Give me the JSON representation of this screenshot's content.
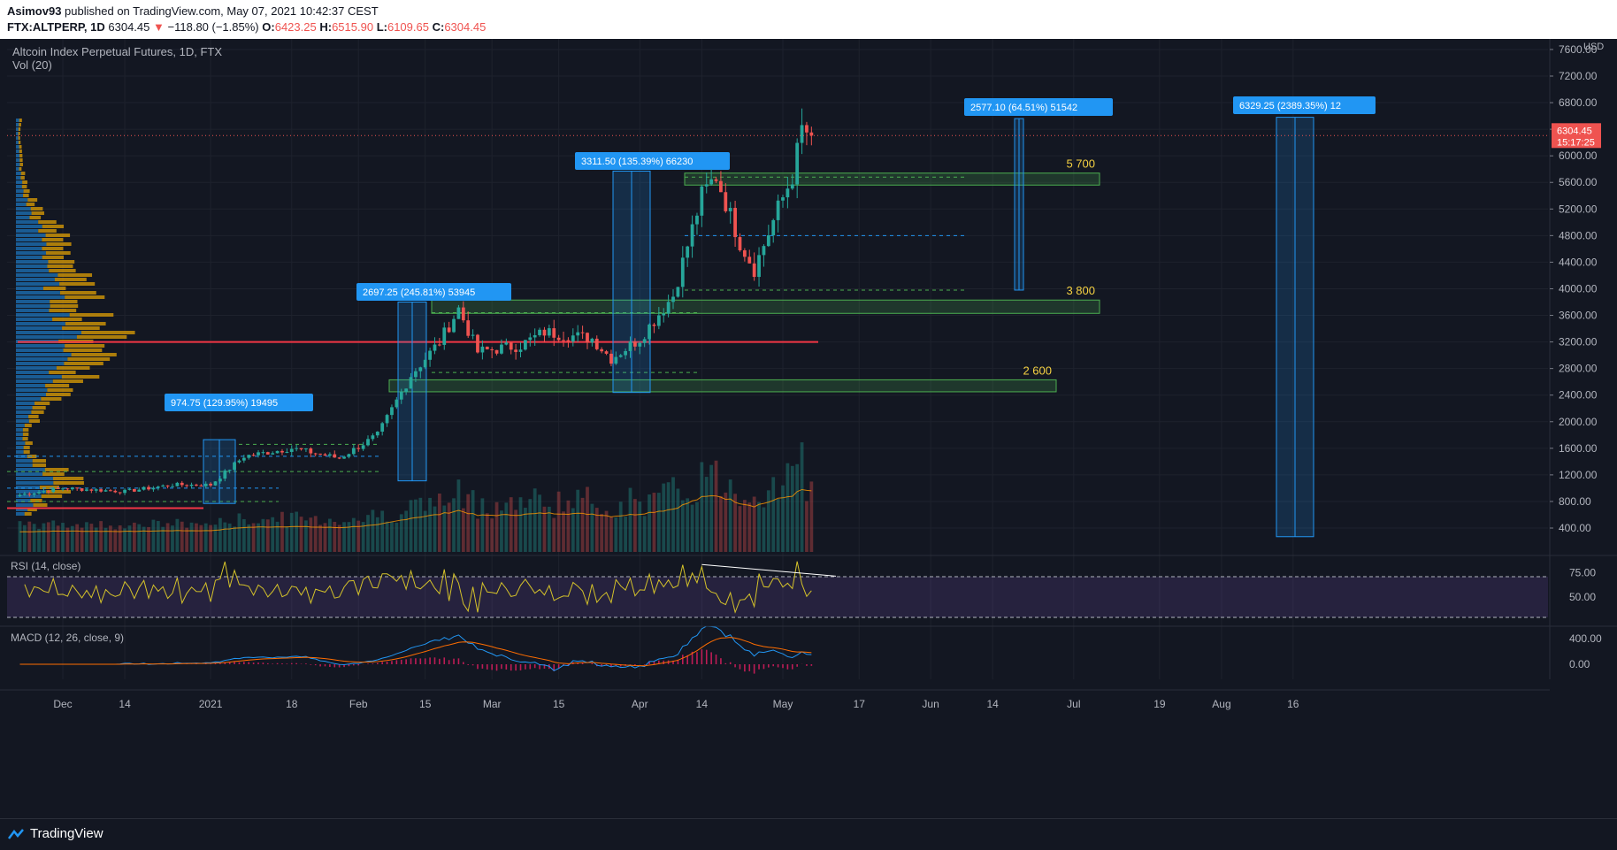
{
  "header": {
    "author": "Asimov93",
    "published": "published on TradingView.com, May 07, 2021 10:42:37 CEST",
    "symbol": "FTX:ALTPERP, 1D",
    "last": "6304.45",
    "change_arrow": "▼",
    "change": "−118.80 (−1.85%)",
    "o_label": "O:",
    "o": "6423.25",
    "h_label": "H:",
    "h": "6515.90",
    "l_label": "L:",
    "l": "6109.65",
    "c_label": "C:",
    "c": "6304.45"
  },
  "chart_title": "Altcoin Index Perpetual Futures, 1D, FTX",
  "vol_label": "Vol (20)",
  "currency": "USD",
  "price_tag": "6304.45",
  "countdown": "15:17:25",
  "rsi_label": "RSI (14, close)",
  "macd_label": "MACD (12, 26, close, 9)",
  "brand": "TradingView",
  "colors": {
    "up": "#26a69a",
    "down": "#ef5350",
    "zone": "#4caf50",
    "measure": "#2196f3",
    "level_text": "#f5d142",
    "rsi_line": "#d4c22a",
    "macd_line": "#2196f3",
    "signal_line": "#ff6d00",
    "hist": "#e91e63"
  },
  "annotations": {
    "levels": [
      "5 700",
      "3 800",
      "2 600"
    ],
    "measures": [
      "974.75 (129.95%) 19495",
      "2697.25 (245.81%) 53945",
      "3311.50 (135.39%) 66230",
      "2577.10 (64.51%) 51542",
      "6329.25 (2389.35%) 12"
    ]
  },
  "chart_data": {
    "type": "candlestick",
    "title": "Altcoin Index Perpetual Futures, 1D, FTX",
    "price_axis": {
      "ticks": [
        "400.00",
        "800.00",
        "1200.00",
        "1600.00",
        "2000.00",
        "2400.00",
        "2800.00",
        "3200.00",
        "3600.00",
        "4000.00",
        "4400.00",
        "4800.00",
        "5200.00",
        "5600.00",
        "6000.00",
        "6400.00",
        "6800.00",
        "7200.00",
        "7600.00"
      ],
      "ylim": [
        0,
        7700
      ]
    },
    "time_axis": {
      "ticks": [
        "Dec",
        "14",
        "2021",
        "18",
        "Feb",
        "15",
        "Mar",
        "15",
        "Apr",
        "14",
        "May",
        "17",
        "Jun",
        "14",
        "Jul",
        "19",
        "Aug",
        "16"
      ]
    },
    "series": [
      {
        "name": "ALTPERP",
        "close_path": [
          [
            "Nov 22",
            900
          ],
          [
            "Dec 1",
            1000
          ],
          [
            "Dec 14",
            950
          ],
          [
            "Dec 24",
            1050
          ],
          [
            "Jan 1",
            1050
          ],
          [
            "Jan 8",
            1480
          ],
          [
            "Jan 18",
            1600
          ],
          [
            "Jan 28",
            1450
          ],
          [
            "Feb 5",
            1800
          ],
          [
            "Feb 12",
            2700
          ],
          [
            "Feb 18",
            3200
          ],
          [
            "Feb 22",
            3700
          ],
          [
            "Feb 26",
            3050
          ],
          [
            "Mar 7",
            3150
          ],
          [
            "Mar 12",
            3350
          ],
          [
            "Mar 22",
            3250
          ],
          [
            "Mar 26",
            2950
          ],
          [
            "Apr 1",
            3250
          ],
          [
            "Apr 8",
            3900
          ],
          [
            "Apr 14",
            5400
          ],
          [
            "Apr 17",
            5700
          ],
          [
            "Apr 22",
            4700
          ],
          [
            "Apr 25",
            4300
          ],
          [
            "Apr 30",
            5200
          ],
          [
            "May 3",
            5700
          ],
          [
            "May 5",
            6400
          ],
          [
            "May 7",
            6304.45
          ]
        ]
      }
    ],
    "indicators": {
      "rsi": {
        "params": "14, close",
        "ticks": [
          "75.00",
          "50.00"
        ],
        "bands": [
          70,
          30
        ]
      },
      "macd": {
        "params": "12, 26, close, 9",
        "ticks": [
          "400.00",
          "0.00"
        ]
      },
      "volume": {
        "params": "20"
      }
    }
  }
}
